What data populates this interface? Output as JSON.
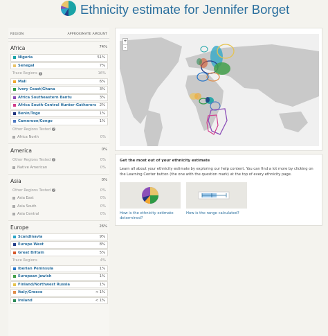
{
  "header": {
    "title": "Ethnicity estimate for Jennifer Borget"
  },
  "columns": {
    "region": "REGION",
    "amount": "APPROXIMATE AMOUNT"
  },
  "colors": {
    "accent": "#2a6f9e",
    "nigeria": "#1aa3a6",
    "senegal": "#e9c46a",
    "mali": "#f0a830",
    "ivory_coast": "#2e9a45",
    "bantu": "#8c4fb8",
    "hunter": "#d23e8c",
    "benin": "#21357e",
    "cameroon": "#4f79c2",
    "scandinavia": "#2aa5c7",
    "europe_west": "#243e8a",
    "great_britain": "#d6582c",
    "iberian": "#2b77c7",
    "european_jewish": "#43a04b",
    "finland": "#e6c34f",
    "italy": "#e08e4a",
    "ireland": "#2e8b57",
    "grey": "#aaaaaa"
  },
  "regions": {
    "africa": {
      "name": "Africa",
      "pct": "74%",
      "items": [
        {
          "name": "Nigeria",
          "pct": "51%"
        },
        {
          "name": "Senegal",
          "pct": "7%"
        }
      ],
      "trace_label": "Trace Regions",
      "trace_pct": "16%",
      "trace": [
        {
          "name": "Mali",
          "pct": "6%"
        },
        {
          "name": "Ivory Coast/Ghana",
          "pct": "3%"
        },
        {
          "name": "Africa Southeastern Bantu",
          "pct": "3%"
        },
        {
          "name": "Africa South-Central Hunter-Gatherers",
          "pct": "2%"
        },
        {
          "name": "Benin/Togo",
          "pct": "1%"
        },
        {
          "name": "Cameroon/Congo",
          "pct": "1%"
        }
      ],
      "other_label": "Other Regions Tested",
      "other": [
        {
          "name": "Africa North",
          "pct": "0%"
        }
      ]
    },
    "america": {
      "name": "America",
      "pct": "0%",
      "other_label": "Other Regions Tested",
      "other_pct": "0%",
      "other": [
        {
          "name": "Native American",
          "pct": "0%"
        }
      ]
    },
    "asia": {
      "name": "Asia",
      "pct": "0%",
      "other_label": "Other Regions Tested",
      "other_pct": "0%",
      "other": [
        {
          "name": "Asia East",
          "pct": "0%"
        },
        {
          "name": "Asia South",
          "pct": "0%"
        },
        {
          "name": "Asia Central",
          "pct": "0%"
        }
      ]
    },
    "europe": {
      "name": "Europe",
      "pct": "26%",
      "items": [
        {
          "name": "Scandinavia",
          "pct": "9%"
        },
        {
          "name": "Europe West",
          "pct": "8%"
        },
        {
          "name": "Great Britain",
          "pct": "5%"
        }
      ],
      "trace_label": "Trace Regions",
      "trace_pct": "4%",
      "trace": [
        {
          "name": "Iberian Peninsula",
          "pct": "1%"
        },
        {
          "name": "European Jewish",
          "pct": "1%"
        },
        {
          "name": "Finland/Northwest Russia",
          "pct": "1%"
        },
        {
          "name": "Italy/Greece",
          "pct": "< 1%"
        },
        {
          "name": "Ireland",
          "pct": "< 1%"
        }
      ]
    }
  },
  "map": {
    "zoom_in": "+",
    "zoom_out": "-"
  },
  "info": {
    "title": "Get the most out of your ethnicity estimate",
    "text": "Learn all about your ethnicity estimate by exploring our help content. You can find a lot more by clicking on the Learning Center button (the one with the question mark) at the top of every ethnicity page.",
    "link1": "How is the ethnicity estimate determined?",
    "link2": "How is the range calculated?"
  }
}
